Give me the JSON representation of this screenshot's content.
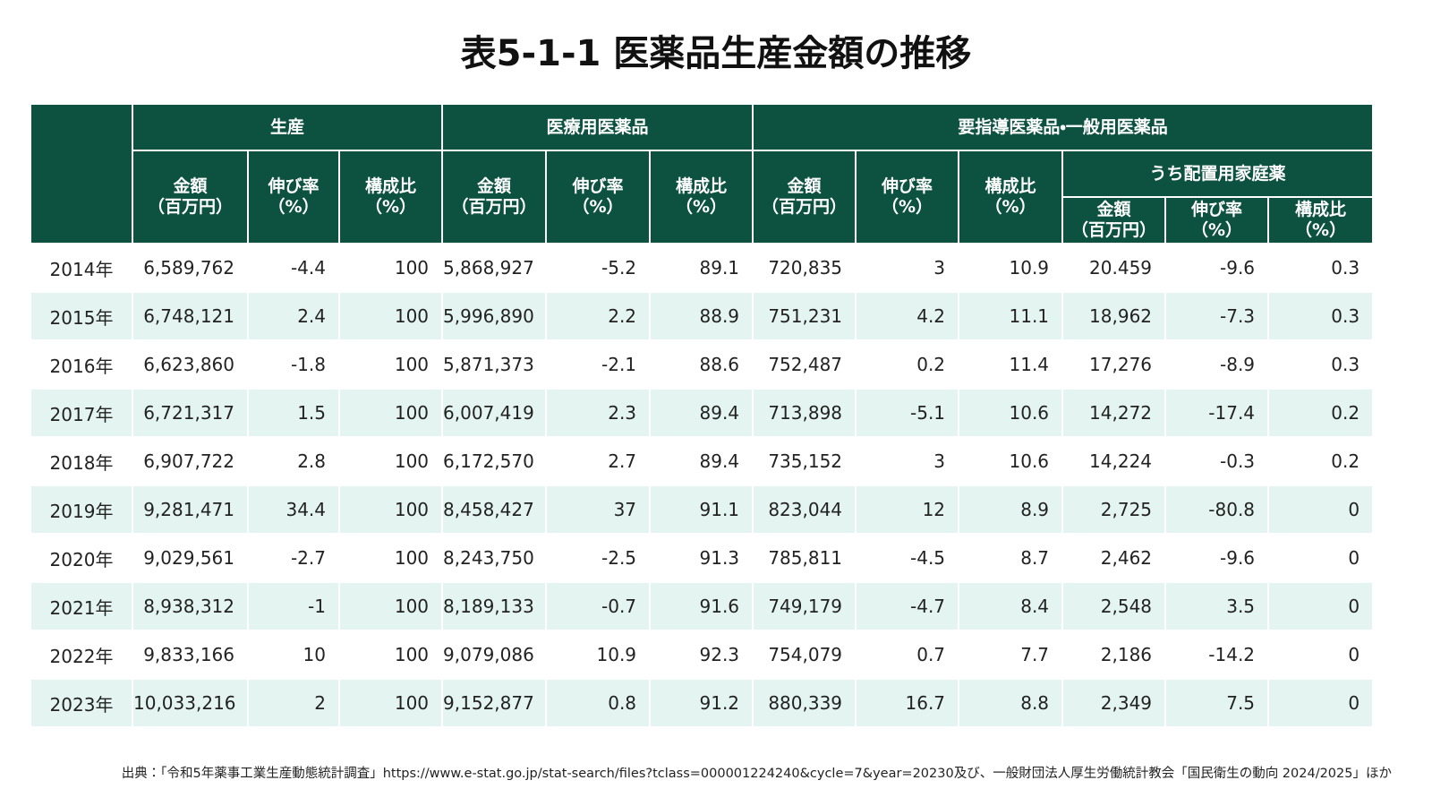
{
  "title": "表5-1-1 医薬品生産金額の推移",
  "table": {
    "group_headers": [
      "生産",
      "医療用医薬品",
      "要指導医薬品・一般用医薬品"
    ],
    "sub_headers": [
      "金額\n（百万円）",
      "伸び率\n（%）",
      "構成比\n（%）",
      "金額\n（百万円）",
      "伸び率\n（%）",
      "構成比\n（%）",
      "金額\n（百万円）",
      "伸び率\n（%）",
      "構成比\n（%）"
    ],
    "nested_group_header": "うち配置用家庭薬",
    "nested_sub_headers": [
      "金額\n（百万円）",
      "伸び率\n（%）",
      "構成比\n（%）"
    ],
    "rows": [
      [
        "2014年",
        "6,589,762",
        "-4.4",
        "100",
        "5,868,927",
        "-5.2",
        "89.1",
        "720,835",
        "3",
        "10.9",
        "20.459",
        "-9.6",
        "0.3"
      ],
      [
        "2015年",
        "6,748,121",
        "2.4",
        "100",
        "5,996,890",
        "2.2",
        "88.9",
        "751,231",
        "4.2",
        "11.1",
        "18,962",
        "-7.3",
        "0.3"
      ],
      [
        "2016年",
        "6,623,860",
        "-1.8",
        "100",
        "5,871,373",
        "-2.1",
        "88.6",
        "752,487",
        "0.2",
        "11.4",
        "17,276",
        "-8.9",
        "0.3"
      ],
      [
        "2017年",
        "6,721,317",
        "1.5",
        "100",
        "6,007,419",
        "2.3",
        "89.4",
        "713,898",
        "-5.1",
        "10.6",
        "14,272",
        "-17.4",
        "0.2"
      ],
      [
        "2018年",
        "6,907,722",
        "2.8",
        "100",
        "6,172,570",
        "2.7",
        "89.4",
        "735,152",
        "3",
        "10.6",
        "14,224",
        "-0.3",
        "0.2"
      ],
      [
        "2019年",
        "9,281,471",
        "34.4",
        "100",
        "8,458,427",
        "37",
        "91.1",
        "823,044",
        "12",
        "8.9",
        "2,725",
        "-80.8",
        "0"
      ],
      [
        "2020年",
        "9,029,561",
        "-2.7",
        "100",
        "8,243,750",
        "-2.5",
        "91.3",
        "785,811",
        "-4.5",
        "8.7",
        "2,462",
        "-9.6",
        "0"
      ],
      [
        "2021年",
        "8,938,312",
        "-1",
        "100",
        "8,189,133",
        "-0.7",
        "91.6",
        "749,179",
        "-4.7",
        "8.4",
        "2,548",
        "3.5",
        "0"
      ],
      [
        "2022年",
        "9,833,166",
        "10",
        "100",
        "9,079,086",
        "10.9",
        "92.3",
        "754,079",
        "0.7",
        "7.7",
        "2,186",
        "-14.2",
        "0"
      ],
      [
        "2023年",
        "10,033,216",
        "2",
        "100",
        "9,152,877",
        "0.8",
        "91.2",
        "880,339",
        "16.7",
        "8.8",
        "2,349",
        "7.5",
        "0"
      ]
    ]
  },
  "source": "出典：「令和5年薬事工業生産動態統計調査」https://www.e-stat.go.jp/stat-search/files?tclass=000001224240&cycle=7&year=20230及び、一般財団法人厚生労働統計教会「国民衛生の動向 2024/2025」ほか"
}
